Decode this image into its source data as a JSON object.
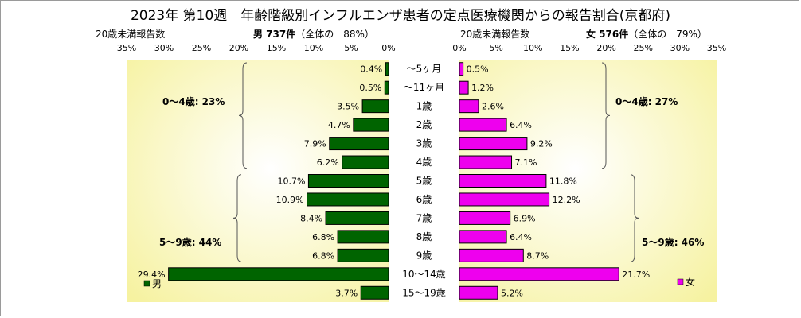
{
  "chart_data": {
    "type": "bar",
    "title": "2023年 第10週　年齢階級別インフルエンザ患者の定点医療機関からの報告割合(京都府)",
    "categories": [
      "～5ヶ月",
      "～11ヶ月",
      "1歳",
      "2歳",
      "3歳",
      "4歳",
      "5歳",
      "6歳",
      "7歳",
      "8歳",
      "9歳",
      "10～14歳",
      "15～19歳"
    ],
    "xlim": [
      0,
      35
    ],
    "x_ticks": [
      "0%",
      "5%",
      "10%",
      "15%",
      "20%",
      "25%",
      "30%",
      "35%"
    ],
    "grid": false,
    "background": "yellow radial gradient",
    "left_panel": {
      "header_left": "20歳未満報告数",
      "header_main": "男 737件",
      "header_sub": "（全体の　88%）",
      "series": {
        "name": "男",
        "color": "#006400",
        "values": [
          0.4,
          0.5,
          3.5,
          4.7,
          7.9,
          6.2,
          10.7,
          10.9,
          8.4,
          6.8,
          6.8,
          29.4,
          3.7
        ],
        "labels": [
          "0.4%",
          "0.5%",
          "3.5%",
          "4.7%",
          "7.9%",
          "6.2%",
          "10.7%",
          "10.9%",
          "8.4%",
          "6.8%",
          "6.8%",
          "29.4%",
          "3.7%"
        ]
      },
      "group_labels": [
        "0～4歳: 23%",
        "5～9歳: 44%"
      ],
      "legend_label": "男"
    },
    "right_panel": {
      "header_left": "20歳未満報告数",
      "header_main": "女 576件",
      "header_sub": "（全体の　79%）",
      "series": {
        "name": "女",
        "color": "#ee00ee",
        "values": [
          0.5,
          1.2,
          2.6,
          6.4,
          9.2,
          7.1,
          11.8,
          12.2,
          6.9,
          6.4,
          8.7,
          21.7,
          5.2
        ],
        "labels": [
          "0.5%",
          "1.2%",
          "2.6%",
          "6.4%",
          "9.2%",
          "7.1%",
          "11.8%",
          "12.2%",
          "6.9%",
          "6.4%",
          "8.7%",
          "21.7%",
          "5.2%"
        ]
      },
      "group_labels": [
        "0～4歳: 27%",
        "5～9歳: 46%"
      ],
      "legend_label": "女"
    }
  }
}
